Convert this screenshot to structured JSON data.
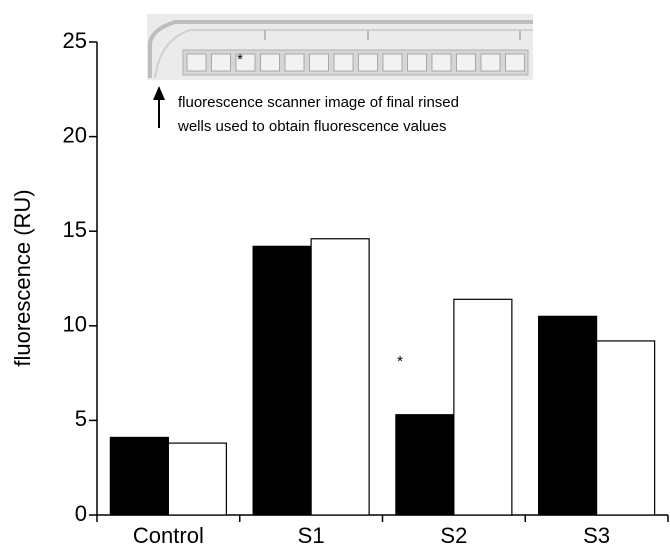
{
  "chart_data": {
    "type": "bar",
    "y_label": "fluorescence (RU)",
    "categories": [
      "Control",
      "S1",
      "S2",
      "S3"
    ],
    "series": [
      {
        "color": "#000000",
        "values": [
          4.1,
          14.2,
          5.3,
          10.5
        ]
      },
      {
        "color": "#ffffff",
        "values": [
          3.8,
          14.6,
          11.4,
          9.2
        ]
      }
    ],
    "ylim": [
      0,
      25
    ],
    "yticks": [
      0,
      5,
      10,
      15,
      20,
      25
    ],
    "annotations": [
      "*",
      "fluorescence scanner image of final rinsed",
      "wells used to obtain fluorescence values",
      "*"
    ]
  }
}
